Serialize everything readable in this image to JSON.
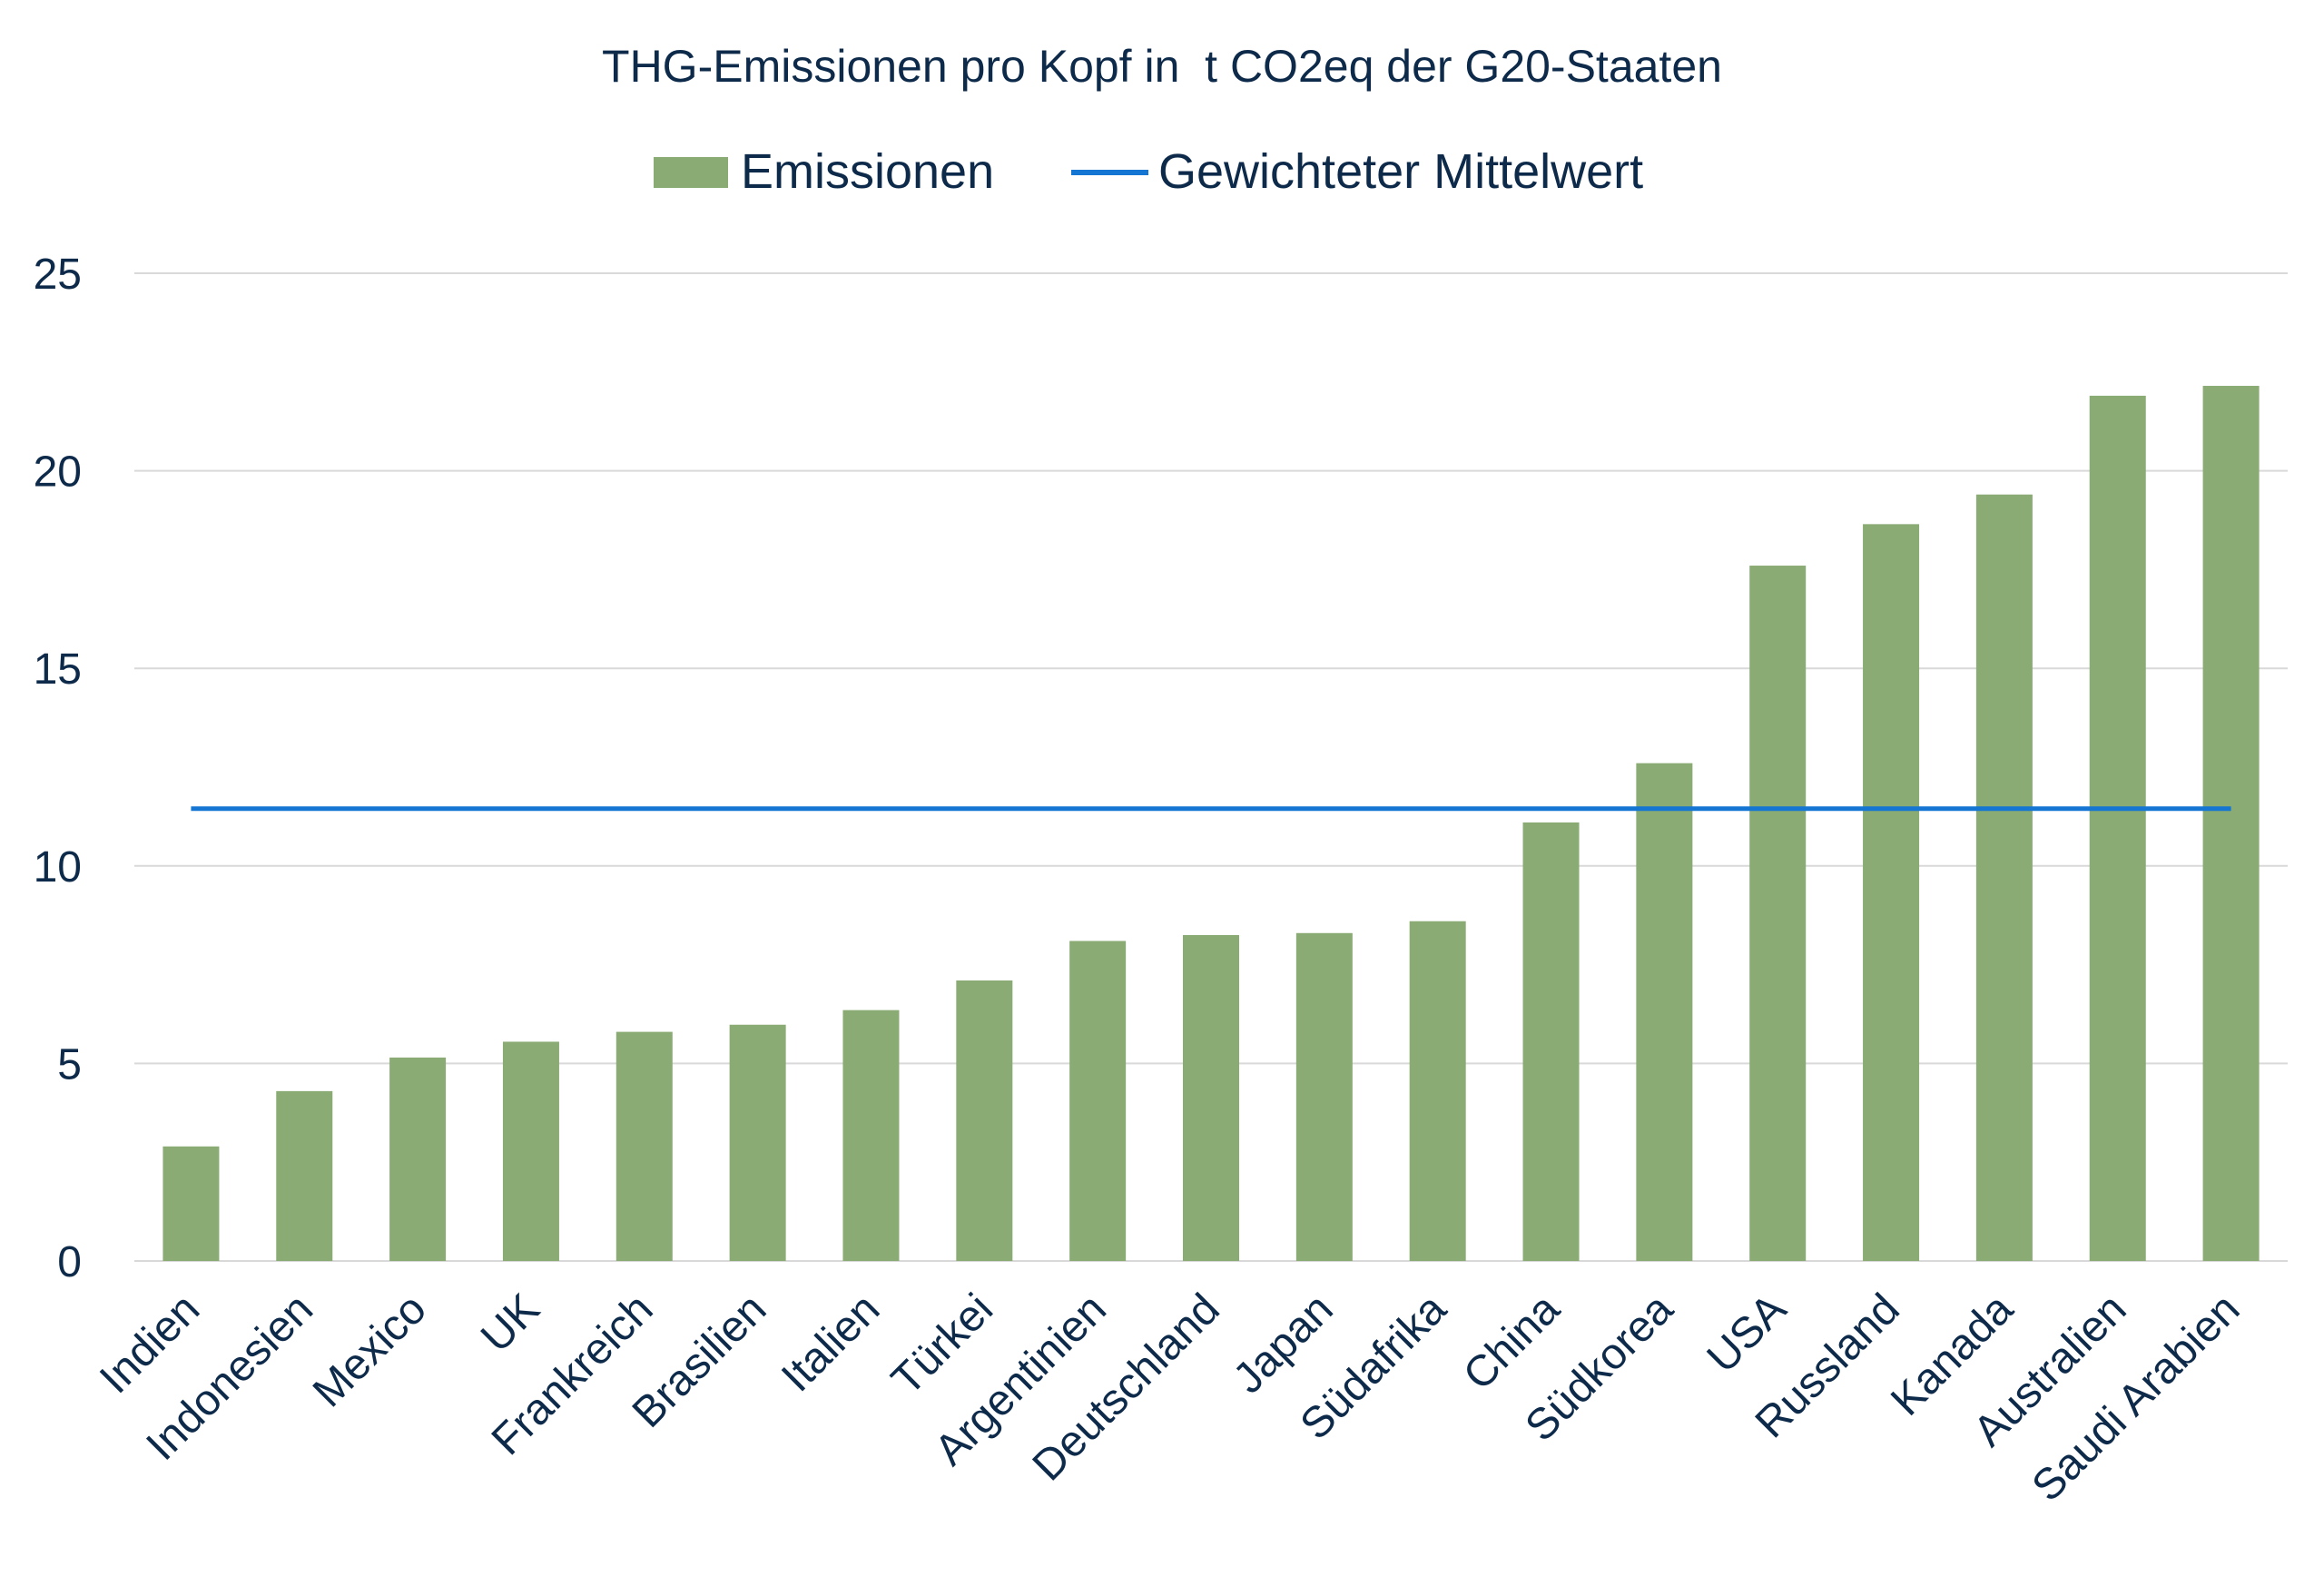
{
  "chart_data": {
    "type": "bar",
    "title": "THG-Emissionen pro Kopf in  t CO2eq der G20-Staaten",
    "xlabel": "",
    "ylabel": "",
    "ylim": [
      0,
      25
    ],
    "yticks": [
      0,
      5,
      10,
      15,
      20,
      25
    ],
    "grid": true,
    "legend_position": "top",
    "categories": [
      "Indien",
      "Indonesien",
      "Mexico",
      "UK",
      "Frankreich",
      "Brasilien",
      "Italien",
      "Türkei",
      "Argentinien",
      "Deutschland",
      "Japan",
      "Südafrika",
      "China",
      "Südkorea",
      "USA",
      "Russland",
      "Kanada",
      "Australien",
      "Saudi Arabien"
    ],
    "series": [
      {
        "name": "Emissionen",
        "type": "bar",
        "color": "#8aab74",
        "values": [
          2.9,
          4.3,
          5.15,
          5.55,
          5.8,
          5.98,
          6.35,
          7.1,
          8.1,
          8.25,
          8.3,
          8.6,
          11.1,
          12.6,
          17.6,
          18.65,
          19.4,
          21.9,
          22.15
        ]
      },
      {
        "name": "Gewichteter Mittelwert",
        "type": "line",
        "color": "#1475d2",
        "value": 11.45
      }
    ]
  }
}
